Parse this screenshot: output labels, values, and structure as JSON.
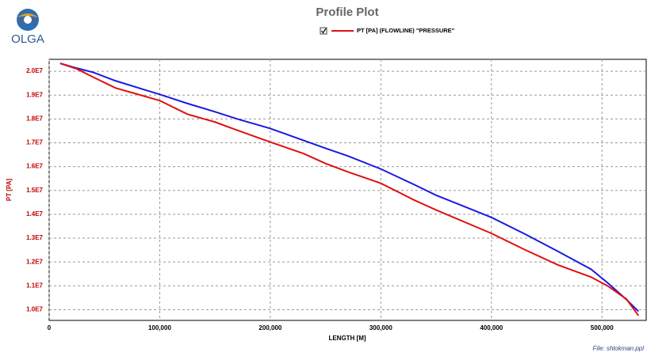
{
  "chart_data": {
    "type": "line",
    "title": "Profile Plot",
    "logo": "OLGA",
    "file_note": "File: shlokman.ppl",
    "xlabel": "LENGTH [M]",
    "ylabel": "PT [PA]",
    "x": [
      10000,
      25000,
      40000,
      60000,
      85000,
      100000,
      125000,
      150000,
      170000,
      200000,
      230000,
      250000,
      270000,
      300000,
      330000,
      350000,
      400000,
      430000,
      460000,
      490000,
      505000,
      522000,
      533000
    ],
    "series": [
      {
        "name": "PT [PA] (FLOWLINE) \"PRESSURE\"",
        "color": "#e01010",
        "values": [
          20330000,
          20100000,
          19750000,
          19300000,
          18970000,
          18770000,
          18200000,
          17870000,
          17530000,
          17030000,
          16550000,
          16130000,
          15780000,
          15300000,
          14600000,
          14180000,
          13200000,
          12520000,
          11880000,
          11370000,
          11000000,
          10450000,
          9750000
        ]
      },
      {
        "color": "#1a1ae0",
        "values": [
          20330000,
          20130000,
          19950000,
          19600000,
          19240000,
          19030000,
          18650000,
          18300000,
          18000000,
          17600000,
          17100000,
          16770000,
          16450000,
          15900000,
          15250000,
          14800000,
          13870000,
          13180000,
          12450000,
          11700000,
          11130000,
          10430000,
          9930000
        ]
      }
    ],
    "xlim": [
      0,
      540000
    ],
    "xticks": [
      0,
      {
        "value": 100000,
        "label": "100,000"
      },
      {
        "value": 200000,
        "label": "200,000"
      },
      {
        "value": 300000,
        "label": "300,000"
      },
      {
        "value": 400000,
        "label": "400,000"
      },
      {
        "value": 500000,
        "label": "500,000"
      }
    ],
    "ylim": [
      9550000,
      20500000
    ],
    "yticks": [
      {
        "value": 10000000,
        "label": "1.0E7"
      },
      {
        "value": 11000000,
        "label": "1.1E7"
      },
      {
        "value": 12000000,
        "label": "1.2E7"
      },
      {
        "value": 13000000,
        "label": "1.3E7"
      },
      {
        "value": 14000000,
        "label": "1.4E7"
      },
      {
        "value": 15000000,
        "label": "1.5E7"
      },
      {
        "value": 16000000,
        "label": "1.6E7"
      },
      {
        "value": 17000000,
        "label": "1.7E7"
      },
      {
        "value": 18000000,
        "label": "1.8E7"
      },
      {
        "value": 19000000,
        "label": "1.9E7"
      },
      {
        "value": 20000000,
        "label": "2.0E7"
      }
    ],
    "grid": true
  }
}
